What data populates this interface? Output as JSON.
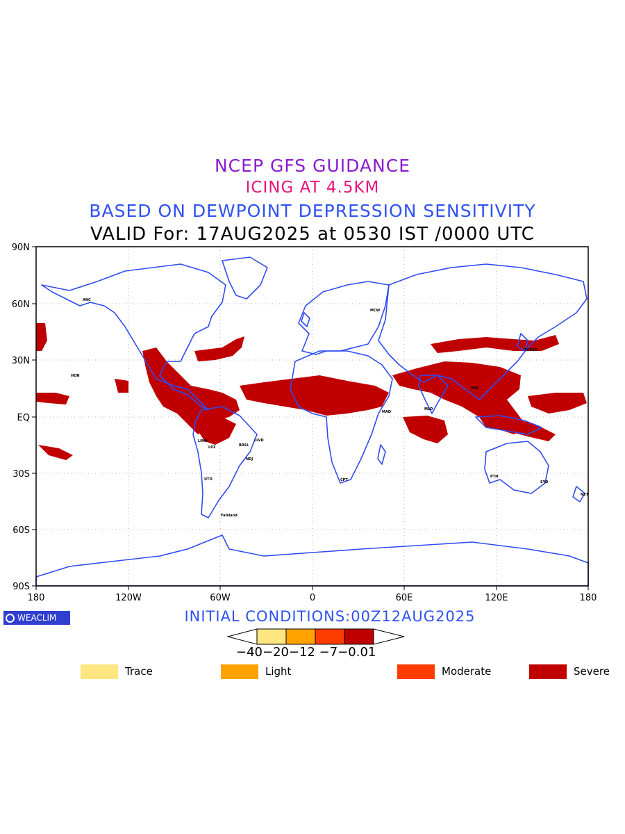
{
  "titles": {
    "line1": "NCEP GFS GUIDANCE",
    "line2": "ICING AT 4.5KM",
    "line3": "BASED ON DEWPOINT DEPRESSION SENSITIVITY",
    "line4": "VALID For: 17AUG2025 at 0530 IST /0000 UTC",
    "colors": {
      "line1": "#8a1ccf",
      "line2": "#e8157a",
      "line3": "#2f52f0",
      "line4": "#000000"
    }
  },
  "map": {
    "y_axis_labels": [
      "90N",
      "60N",
      "30N",
      "EQ",
      "30S",
      "60S",
      "90S"
    ],
    "x_axis_labels": [
      "180",
      "120W",
      "60W",
      "0",
      "60E",
      "120E",
      "180"
    ],
    "coastline_color": "#2f4cf0",
    "icing_color": "#c00000",
    "grid": "dotted",
    "stations": [
      "ANC",
      "MCW",
      "HON",
      "BRSL",
      "LLVD",
      "MAD",
      "MLD",
      "NDJ",
      "CPT",
      "PTH",
      "SYD",
      "NZT",
      "TOKYO",
      "BKK",
      "Falkland",
      "UTO",
      "LIMA",
      "LPZ"
    ]
  },
  "branding": {
    "logo_text": "WEACLIM"
  },
  "initial_conditions": "INITIAL CONDITIONS:00Z12AUG2025",
  "colorbar": {
    "tick_labels": "−40−20−12 −7−0.01",
    "colors": [
      "#ffe680",
      "#ffa200",
      "#ff3c00",
      "#c00000"
    ]
  },
  "legend": [
    {
      "label": "Trace",
      "color": "#ffe680"
    },
    {
      "label": "Light",
      "color": "#ffa200"
    },
    {
      "label": "Moderate",
      "color": "#ff3c00"
    },
    {
      "label": "Severe",
      "color": "#c00000"
    }
  ]
}
